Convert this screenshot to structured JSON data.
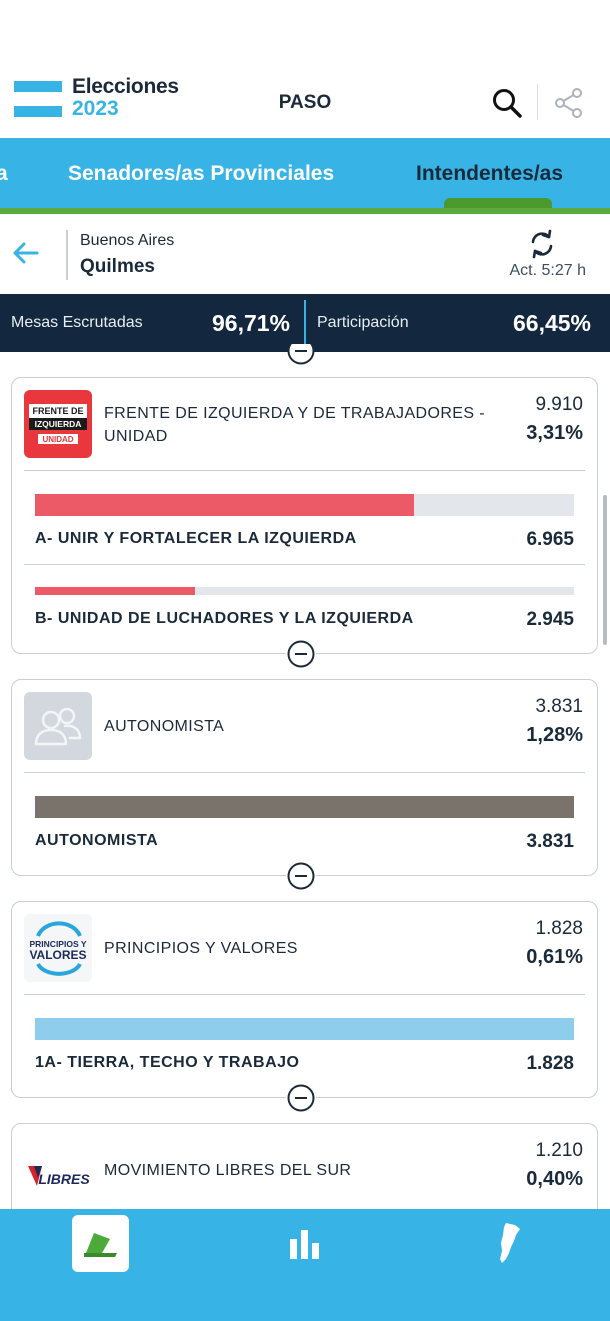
{
  "header": {
    "logo_line1": "Elecciones",
    "logo_line2": "2023",
    "title": "PASO"
  },
  "tabs": [
    {
      "label": "a"
    },
    {
      "label": "Senadores/as Provinciales"
    },
    {
      "label": "Intendentes/as",
      "active": true
    }
  ],
  "location": {
    "province": "Buenos Aires",
    "city": "Quilmes",
    "updated": "Act. 5:27 h"
  },
  "stats": {
    "mesas_label": "Mesas Escrutadas",
    "mesas_value": "96,71%",
    "participacion_label": "Participación",
    "participacion_value": "66,45%"
  },
  "parties": [
    {
      "name_line1": "FRENTE DE IZQUIERDA Y DE TRABAJADORES -",
      "name_line2": "UNIDAD",
      "votes": "9.910",
      "pct": "3,31%",
      "logo": {
        "line1": "FRENTE DE",
        "line2": "IZQUIERDA",
        "line3": "UNIDAD"
      },
      "color": "#ec5a68",
      "lists": [
        {
          "name": "A- UNIR Y FORTALECER LA IZQUIERDA",
          "votes": "6.965",
          "share": 0.703
        },
        {
          "name": "B- UNIDAD DE LUCHADORES Y LA IZQUIERDA",
          "votes": "2.945",
          "share": 0.297
        }
      ]
    },
    {
      "name_line1": "AUTONOMISTA",
      "votes": "3.831",
      "pct": "1,28%",
      "color": "#7a736b",
      "lists": [
        {
          "name": "AUTONOMISTA",
          "votes": "3.831",
          "share": 1.0
        }
      ]
    },
    {
      "name_line1": "PRINCIPIOS Y VALORES",
      "votes": "1.828",
      "pct": "0,61%",
      "logo": {
        "line1": "PRINCIPIOS Y",
        "line2": "VALORES"
      },
      "color": "#8fcdec",
      "lists": [
        {
          "name": "1A- TIERRA, TECHO  Y TRABAJO",
          "votes": "1.828",
          "share": 1.0
        }
      ]
    },
    {
      "name_line1": "MOVIMIENTO LIBRES DEL SUR",
      "votes": "1.210",
      "pct": "0,40%",
      "logo": {
        "line1": "LIBRES"
      }
    }
  ],
  "icons": {
    "search": "search-icon",
    "share": "share-icon",
    "back": "arrow-left-icon",
    "refresh": "refresh-icon",
    "collapse": "minus-circle-icon",
    "nav_home": "ballot-icon",
    "nav_results": "bar-chart-icon",
    "nav_map": "argentina-map-icon"
  },
  "colors": {
    "brand_blue": "#37b4e5",
    "dark_navy": "#13283e",
    "green": "#5aaa3c"
  }
}
